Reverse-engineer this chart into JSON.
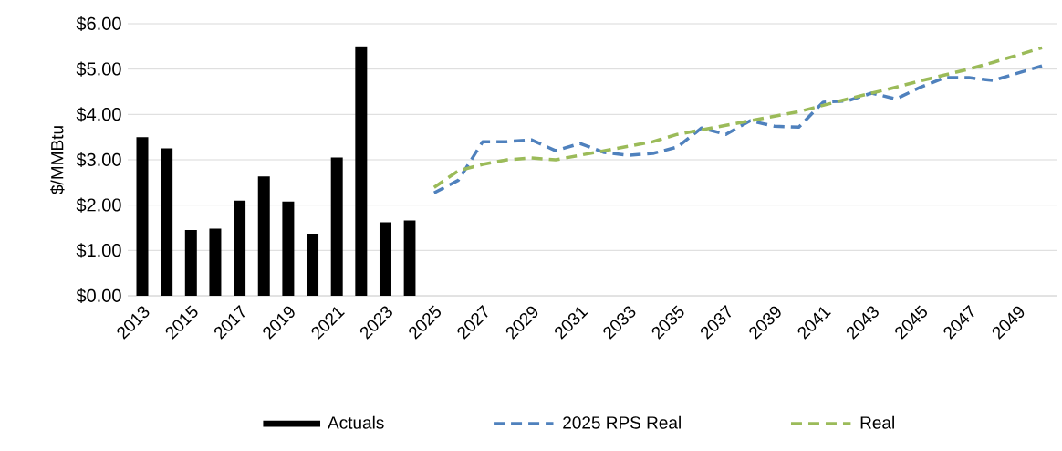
{
  "chart_data": {
    "type": "bar",
    "ylabel": "$/MMBtu",
    "categories": [
      "2013",
      null,
      "2015",
      null,
      "2017",
      null,
      "2019",
      null,
      "2021",
      null,
      "2023",
      null,
      "2025",
      null,
      "2027",
      null,
      "2029",
      null,
      "2031",
      null,
      "2033",
      null,
      "2035",
      null,
      "2037",
      null,
      "2039",
      null,
      "2041",
      null,
      "2043",
      null,
      "2045",
      null,
      "2047",
      null,
      "2049",
      null
    ],
    "series": [
      {
        "name": "Actuals",
        "color": "#000000",
        "values": [
          3.5,
          3.25,
          1.45,
          1.48,
          2.1,
          2.63,
          2.08,
          1.37,
          3.05,
          5.5,
          1.62,
          1.66,
          null,
          null,
          null,
          null,
          null,
          null,
          null,
          null,
          null,
          null,
          null,
          null,
          null,
          null,
          null,
          null,
          null,
          null,
          null,
          null,
          null,
          null,
          null,
          null,
          null,
          null
        ]
      },
      {
        "name": "2025 RPS Real",
        "type": "line",
        "line_style": "dashed",
        "color": "#4f81bd",
        "values": [
          null,
          null,
          null,
          null,
          null,
          null,
          null,
          null,
          null,
          null,
          null,
          null,
          2.27,
          2.55,
          3.4,
          3.4,
          3.44,
          3.2,
          3.36,
          3.16,
          3.1,
          3.14,
          3.28,
          3.7,
          3.56,
          3.86,
          3.74,
          3.72,
          4.27,
          4.3,
          4.47,
          4.34,
          4.6,
          4.81,
          4.81,
          4.75,
          4.91,
          5.07
        ]
      },
      {
        "name": "Real",
        "type": "line",
        "line_style": "dashed",
        "color": "#9bbb59",
        "values": [
          null,
          null,
          null,
          null,
          null,
          null,
          null,
          null,
          null,
          null,
          null,
          null,
          2.39,
          2.76,
          2.9,
          3.0,
          3.04,
          3.0,
          3.1,
          3.2,
          3.3,
          3.4,
          3.56,
          3.66,
          3.76,
          3.86,
          3.96,
          4.06,
          4.2,
          4.34,
          4.47,
          4.6,
          4.74,
          4.87,
          5.0,
          5.15,
          5.31,
          5.47
        ]
      }
    ],
    "ylim": [
      0,
      6
    ],
    "yticks": [
      {
        "value": 0,
        "label": "$0.00"
      },
      {
        "value": 1,
        "label": "$1.00"
      },
      {
        "value": 2,
        "label": "$2.00"
      },
      {
        "value": 3,
        "label": "$3.00"
      },
      {
        "value": 4,
        "label": "$4.00"
      },
      {
        "value": 5,
        "label": "$5.00"
      },
      {
        "value": 6,
        "label": "$6.00"
      }
    ],
    "grid": "y",
    "legend": "bottom"
  }
}
